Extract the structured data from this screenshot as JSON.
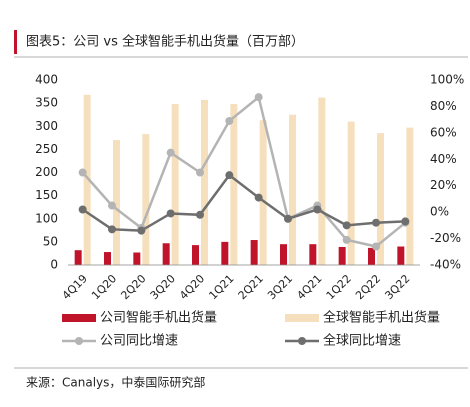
{
  "chart_data": {
    "type": "combo",
    "title": "图表5：公司 vs 全球智能手机出货量（百万部）",
    "source": "来源：Canalys，中泰国际研究部",
    "categories": [
      "4Q19",
      "1Q20",
      "2Q20",
      "3Q20",
      "4Q20",
      "1Q21",
      "2Q21",
      "3Q21",
      "4Q21",
      "1Q22",
      "2Q22",
      "3Q22"
    ],
    "series": [
      {
        "name": "公司智能手机出货量",
        "type": "bar",
        "color": "#c0142a",
        "values": [
          32,
          28,
          27,
          47,
          43,
          50,
          54,
          45,
          45,
          39,
          37,
          40
        ]
      },
      {
        "name": "全球智能手机出货量",
        "type": "bar",
        "color": "#f5dfbd",
        "values": [
          368,
          270,
          283,
          348,
          357,
          348,
          313,
          325,
          362,
          310,
          285,
          297
        ]
      },
      {
        "name": "公司同比增速",
        "type": "line",
        "axis": "y2",
        "color": "#b4b4b4",
        "values": [
          30,
          5,
          -12,
          45,
          30,
          69,
          87,
          -5,
          5,
          -21,
          -26,
          -8
        ]
      },
      {
        "name": "全球同比增速",
        "type": "line",
        "axis": "y2",
        "color": "#6e6e6e",
        "values": [
          2,
          -13,
          -14,
          -1,
          -2,
          28,
          11,
          -5,
          2,
          -10,
          -8,
          -7
        ]
      }
    ],
    "ylim": [
      0,
      400
    ],
    "yticks": [
      0,
      50,
      100,
      150,
      200,
      250,
      300,
      350,
      400
    ],
    "y2lim": [
      -40,
      100
    ],
    "y2ticks": [
      {
        "value": -40,
        "label": "-40%"
      },
      {
        "value": -20,
        "label": "-20%"
      },
      {
        "value": 0,
        "label": "0%"
      },
      {
        "value": 20,
        "label": "20%"
      },
      {
        "value": 40,
        "label": "40%"
      },
      {
        "value": 60,
        "label": "60%"
      },
      {
        "value": 80,
        "label": "80%"
      },
      {
        "value": 100,
        "label": "100%"
      }
    ],
    "grid": false
  }
}
